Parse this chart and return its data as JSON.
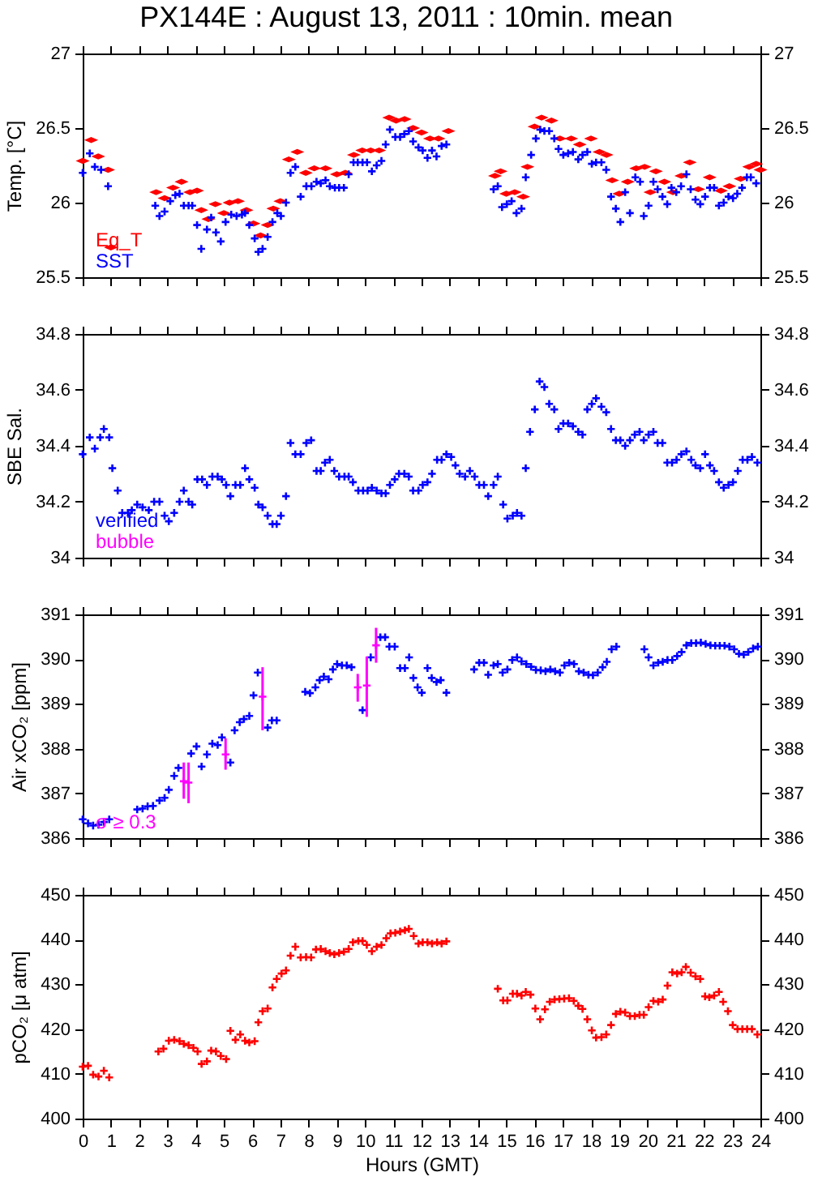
{
  "chart_data": [
    {
      "type": "scatter",
      "title": "PX144E : August 13, 2011 : 10min. mean",
      "ylabel": "Temp. [°C]",
      "xlim": [
        0,
        24
      ],
      "xticks": [
        0,
        1,
        2,
        3,
        4,
        5,
        6,
        7,
        8,
        9,
        10,
        11,
        12,
        13,
        14,
        15,
        16,
        17,
        18,
        19,
        20,
        21,
        22,
        23,
        24
      ],
      "ylim": [
        25.5,
        27
      ],
      "yticks": [
        25.5,
        26,
        26.5,
        27
      ],
      "y2lim": [
        25.5,
        27
      ],
      "y2ticks": [
        25.5,
        26,
        26.5,
        27
      ],
      "tick_labels": "y",
      "legend": "bottom left",
      "marker": "cross",
      "series": [
        {
          "name": "Eq_T",
          "color": "#ff0000",
          "marker": "diamond",
          "x": [
            0.0,
            0.3,
            0.55,
            0.9,
            1.0,
            2.6,
            2.9,
            3.2,
            3.5,
            3.8,
            4.05,
            4.2,
            4.45,
            4.7,
            5.0,
            5.2,
            5.5,
            5.8,
            6.05,
            6.3,
            6.55,
            6.75,
            7.0,
            7.3,
            7.6,
            7.9,
            8.2,
            8.6,
            9.0,
            9.3,
            9.6,
            9.9,
            10.2,
            10.5,
            10.85,
            11.1,
            11.4,
            11.7,
            12.0,
            12.3,
            12.6,
            12.95,
            14.6,
            14.8,
            15.0,
            15.3,
            15.6,
            15.75,
            16.0,
            16.25,
            16.6,
            16.9,
            17.3,
            17.6,
            18.0,
            18.3,
            18.55,
            18.75,
            19.0,
            19.3,
            19.6,
            19.9,
            20.1,
            20.3,
            20.6,
            20.9,
            21.2,
            21.5,
            21.8,
            22.2,
            22.6,
            22.9,
            23.3,
            23.6,
            23.85,
            24
          ],
          "values": [
            26.28,
            26.42,
            26.31,
            26.22,
            25.7,
            26.07,
            26.03,
            26.1,
            26.14,
            26.07,
            26.08,
            25.95,
            25.89,
            25.99,
            25.93,
            26.0,
            26.01,
            25.95,
            25.86,
            25.78,
            25.85,
            25.96,
            26.01,
            26.29,
            26.34,
            26.2,
            26.23,
            26.23,
            26.19,
            26.2,
            26.32,
            26.35,
            26.35,
            26.35,
            26.57,
            26.55,
            26.56,
            26.5,
            26.47,
            26.43,
            26.43,
            26.48,
            26.18,
            26.21,
            26.06,
            26.07,
            26.04,
            26.24,
            26.51,
            26.57,
            26.55,
            26.43,
            26.43,
            26.39,
            26.43,
            26.34,
            26.32,
            26.15,
            26.06,
            26.14,
            26.23,
            26.24,
            26.07,
            26.21,
            26.14,
            26.07,
            26.18,
            26.27,
            26.09,
            26.17,
            26.08,
            26.11,
            26.16,
            26.24,
            26.26,
            26.22
          ]
        },
        {
          "name": "SST",
          "color": "#0000ff",
          "x": [
            0.0,
            0.25,
            0.43,
            0.65,
            0.9,
            2.57,
            2.72,
            2.9,
            3.1,
            3.28,
            3.43,
            3.58,
            3.75,
            3.88,
            4.05,
            4.2,
            4.4,
            4.55,
            4.72,
            4.89,
            5.06,
            5.26,
            5.45,
            5.64,
            5.75,
            5.9,
            6.09,
            6.22,
            6.37,
            6.55,
            6.72,
            6.89,
            7.02,
            7.2,
            7.36,
            7.53,
            7.72,
            7.92,
            8.1,
            8.28,
            8.43,
            8.6,
            8.75,
            8.93,
            9.08,
            9.25,
            9.42,
            9.59,
            9.74,
            9.91,
            10.07,
            10.24,
            10.41,
            10.58,
            10.73,
            10.88,
            11.07,
            11.24,
            11.39,
            11.55,
            11.7,
            11.89,
            12.04,
            12.21,
            12.37,
            12.53,
            12.71,
            12.88,
            14.55,
            14.7,
            14.85,
            15.02,
            15.19,
            15.36,
            15.54,
            15.69,
            15.88,
            16.05,
            16.2,
            16.35,
            16.52,
            16.7,
            16.85,
            17.02,
            17.19,
            17.36,
            17.55,
            17.7,
            17.87,
            18.03,
            18.18,
            18.37,
            18.54,
            18.71,
            18.88,
            19.04,
            19.21,
            19.38,
            19.57,
            19.74,
            19.87,
            20.04,
            20.21,
            20.36,
            20.53,
            20.7,
            20.85,
            21.02,
            21.19,
            21.38,
            21.53,
            21.7,
            21.87,
            22.04,
            22.21,
            22.36,
            22.53,
            22.7,
            22.87,
            23.03,
            23.18,
            23.35,
            23.52,
            23.66,
            23.85
          ],
          "values": [
            26.2,
            26.33,
            26.24,
            26.22,
            26.11,
            25.98,
            25.91,
            25.94,
            26.01,
            26.05,
            26.06,
            25.98,
            25.98,
            25.98,
            25.85,
            25.69,
            25.82,
            25.9,
            25.8,
            25.74,
            25.87,
            25.92,
            25.91,
            25.92,
            25.93,
            25.85,
            25.76,
            25.67,
            25.69,
            25.77,
            25.87,
            25.93,
            25.91,
            26.0,
            26.2,
            26.24,
            26.04,
            26.11,
            26.11,
            26.14,
            26.13,
            26.15,
            26.11,
            26.1,
            26.1,
            26.1,
            26.19,
            26.27,
            26.27,
            26.27,
            26.27,
            26.21,
            26.25,
            26.28,
            26.39,
            26.49,
            26.44,
            26.44,
            26.46,
            26.48,
            26.41,
            26.37,
            26.35,
            26.3,
            26.35,
            26.31,
            26.38,
            26.39,
            26.09,
            26.11,
            25.97,
            25.99,
            26.01,
            25.93,
            25.96,
            26.17,
            26.32,
            26.43,
            26.49,
            26.48,
            26.48,
            26.43,
            26.36,
            26.32,
            26.33,
            26.34,
            26.29,
            26.32,
            26.34,
            26.26,
            26.27,
            26.27,
            26.22,
            26.04,
            25.96,
            25.87,
            26.07,
            25.93,
            26.17,
            26.14,
            25.91,
            25.98,
            26.14,
            26.09,
            26.04,
            25.99,
            26.1,
            26.07,
            26.11,
            26.19,
            26.09,
            26.02,
            25.99,
            26.04,
            26.1,
            26.1,
            25.98,
            26.0,
            26.04,
            26.03,
            26.06,
            26.1,
            26.17,
            26.17,
            26.13
          ]
        }
      ]
    },
    {
      "type": "scatter",
      "ylabel": "SBE Sal.",
      "xlim": [
        0,
        24
      ],
      "xticks": [
        0,
        1,
        2,
        3,
        4,
        5,
        6,
        7,
        8,
        9,
        10,
        11,
        12,
        13,
        14,
        15,
        16,
        17,
        18,
        19,
        20,
        21,
        22,
        23,
        24
      ],
      "ylim": [
        34,
        34.8
      ],
      "yticks": [
        34,
        34.2,
        34.4,
        34.6,
        34.8
      ],
      "y2lim": [
        34,
        34.8
      ],
      "y2ticks": [
        34,
        34.2,
        34.4,
        34.6,
        34.8
      ],
      "tick_labels": "y",
      "legend": "bottom left",
      "marker": "cross",
      "series": [
        {
          "name": "verified",
          "color": "#0000ff",
          "x": [
            0.0,
            0.25,
            0.43,
            0.62,
            0.75,
            0.94,
            1.05,
            1.24,
            1.4,
            1.6,
            1.74,
            1.93,
            2.12,
            2.34,
            2.53,
            2.72,
            2.9,
            3.05,
            3.24,
            3.43,
            3.58,
            3.75,
            3.88,
            4.06,
            4.23,
            4.4,
            4.59,
            4.78,
            4.93,
            5.08,
            5.23,
            5.41,
            5.58,
            5.75,
            5.9,
            6.09,
            6.22,
            6.37,
            6.55,
            6.72,
            6.87,
            7.02,
            7.2,
            7.36,
            7.53,
            7.72,
            7.92,
            8.09,
            8.28,
            8.43,
            8.58,
            8.75,
            8.91,
            9.08,
            9.27,
            9.42,
            9.57,
            9.76,
            9.93,
            10.09,
            10.24,
            10.41,
            10.58,
            10.73,
            10.88,
            11.05,
            11.2,
            11.39,
            11.55,
            11.7,
            11.89,
            12.04,
            12.21,
            12.37,
            12.55,
            12.71,
            12.88,
            13.05,
            13.2,
            13.35,
            13.54,
            13.71,
            13.88,
            14.04,
            14.21,
            14.36,
            14.55,
            14.7,
            14.89,
            15.04,
            15.23,
            15.38,
            15.54,
            15.69,
            15.84,
            16.01,
            16.18,
            16.35,
            16.52,
            16.7,
            16.85,
            17.02,
            17.19,
            17.36,
            17.55,
            17.7,
            17.87,
            18.03,
            18.18,
            18.37,
            18.54,
            18.71,
            18.88,
            19.04,
            19.21,
            19.38,
            19.55,
            19.72,
            19.87,
            20.04,
            20.21,
            20.36,
            20.53,
            20.7,
            20.87,
            21.03,
            21.2,
            21.38,
            21.55,
            21.7,
            21.87,
            22.04,
            22.21,
            22.36,
            22.53,
            22.7,
            22.87,
            23.03,
            23.2,
            23.37,
            23.54,
            23.7,
            23.89
          ],
          "values": [
            34.37,
            34.43,
            34.39,
            34.43,
            34.46,
            34.43,
            34.32,
            34.24,
            34.16,
            34.16,
            34.17,
            34.19,
            34.18,
            34.17,
            34.2,
            34.2,
            34.15,
            34.13,
            34.16,
            34.2,
            34.24,
            34.2,
            34.19,
            34.28,
            34.28,
            34.26,
            34.29,
            34.29,
            34.28,
            34.26,
            34.22,
            34.26,
            34.26,
            34.32,
            34.28,
            34.25,
            34.19,
            34.18,
            34.15,
            34.12,
            34.12,
            34.15,
            34.22,
            34.41,
            34.37,
            34.37,
            34.41,
            34.42,
            34.31,
            34.31,
            34.34,
            34.35,
            34.31,
            34.29,
            34.29,
            34.29,
            34.27,
            34.24,
            34.24,
            34.24,
            34.25,
            34.24,
            34.23,
            34.23,
            34.26,
            34.28,
            34.3,
            34.3,
            34.29,
            34.24,
            34.24,
            34.26,
            34.27,
            34.3,
            34.35,
            34.35,
            34.37,
            34.36,
            34.33,
            34.3,
            34.29,
            34.31,
            34.29,
            34.26,
            34.26,
            34.22,
            34.26,
            34.29,
            34.19,
            34.14,
            34.15,
            34.16,
            34.15,
            34.32,
            34.45,
            34.53,
            34.63,
            34.61,
            34.55,
            34.53,
            34.46,
            34.48,
            34.48,
            34.47,
            34.45,
            34.44,
            34.53,
            34.55,
            34.57,
            34.54,
            34.52,
            34.46,
            34.42,
            34.42,
            34.4,
            34.42,
            34.44,
            34.45,
            34.42,
            34.44,
            34.45,
            34.41,
            34.41,
            34.34,
            34.34,
            34.35,
            34.37,
            34.38,
            34.35,
            34.33,
            34.32,
            34.37,
            34.33,
            34.31,
            34.27,
            34.25,
            34.26,
            34.27,
            34.31,
            34.35,
            34.35,
            34.36,
            34.34
          ]
        },
        {
          "name": "bubble",
          "color": "#ff00ff"
        }
      ]
    },
    {
      "type": "scatter",
      "ylabel": "Air xCO₂ [ppm]",
      "xlim": [
        0,
        24
      ],
      "xticks": [
        0,
        1,
        2,
        3,
        4,
        5,
        6,
        7,
        8,
        9,
        10,
        11,
        12,
        13,
        14,
        15,
        16,
        17,
        18,
        19,
        20,
        21,
        22,
        23,
        24
      ],
      "ylim": [
        386,
        391
      ],
      "yticks": [
        386,
        387,
        388,
        389,
        390,
        391
      ],
      "y2lim": [
        386,
        391
      ],
      "y2ticks": [
        386,
        387,
        388,
        389,
        390,
        391
      ],
      "tick_labels": "y",
      "legend": "bottom left",
      "marker": "cross",
      "series": [
        {
          "color": "#0000ff",
          "x": [
            0.0,
            0.19,
            0.37,
            0.56,
            0.75,
            0.94,
            1.93,
            2.12,
            2.3,
            2.49,
            2.72,
            2.9,
            3.05,
            3.24,
            3.39,
            3.84,
            4.03,
            4.21,
            4.4,
            4.59,
            4.78,
            4.93,
            5.23,
            5.38,
            5.56,
            5.71,
            5.9,
            6.05,
            6.2,
            6.55,
            6.7,
            6.87,
            7.88,
            8.05,
            8.24,
            8.39,
            8.54,
            8.71,
            8.86,
            9.01,
            9.18,
            9.35,
            9.52,
            9.91,
            10.2,
            10.54,
            10.71,
            10.86,
            11.05,
            11.24,
            11.41,
            11.56,
            11.71,
            11.86,
            12.01,
            12.21,
            12.36,
            12.53,
            12.68,
            12.88,
            13.86,
            14.04,
            14.21,
            14.36,
            14.55,
            14.7,
            14.87,
            15.04,
            15.21,
            15.38,
            15.54,
            15.71,
            15.88,
            16.05,
            16.22,
            16.39,
            16.56,
            16.73,
            16.9,
            17.06,
            17.23,
            17.4,
            17.57,
            17.74,
            17.91,
            18.07,
            18.24,
            18.41,
            18.56,
            18.73,
            18.9,
            19.89,
            20.04,
            20.21,
            20.38,
            20.54,
            20.71,
            20.88,
            21.05,
            21.21,
            21.38,
            21.55,
            21.72,
            21.89,
            22.06,
            22.23,
            22.4,
            22.56,
            22.73,
            22.9,
            23.07,
            23.24,
            23.41,
            23.57,
            23.74,
            23.91
          ],
          "values": [
            386.42,
            386.33,
            386.28,
            386.3,
            386.36,
            386.42,
            386.64,
            386.66,
            386.71,
            386.72,
            386.84,
            386.9,
            387.08,
            387.39,
            387.57,
            387.89,
            388.05,
            387.6,
            387.87,
            388.11,
            388.08,
            388.25,
            387.69,
            388.41,
            388.59,
            388.66,
            388.73,
            389.19,
            389.7,
            388.47,
            388.63,
            388.63,
            389.27,
            389.24,
            389.37,
            389.53,
            389.61,
            389.55,
            389.77,
            389.89,
            389.86,
            389.86,
            389.82,
            388.86,
            390.04,
            390.49,
            390.49,
            390.28,
            390.28,
            389.8,
            389.8,
            390.04,
            389.58,
            389.37,
            389.25,
            389.8,
            389.58,
            389.49,
            389.53,
            389.25,
            389.77,
            389.92,
            389.92,
            389.65,
            389.86,
            389.89,
            389.7,
            389.77,
            389.98,
            390.04,
            389.95,
            389.89,
            389.83,
            389.76,
            389.75,
            389.73,
            389.77,
            389.73,
            389.7,
            389.86,
            389.92,
            389.89,
            389.73,
            389.7,
            389.65,
            389.64,
            389.7,
            389.82,
            389.94,
            390.22,
            390.28,
            390.22,
            390.04,
            389.86,
            389.92,
            389.94,
            389.98,
            389.98,
            390.07,
            390.16,
            390.31,
            390.36,
            390.36,
            390.37,
            390.34,
            390.31,
            390.3,
            390.3,
            390.3,
            390.28,
            390.22,
            390.12,
            390.1,
            390.16,
            390.24,
            390.28
          ]
        },
        {
          "name": "σ ≥ 0.3",
          "color": "#ff00ff",
          "x": [
            3.58,
            3.75,
            5.06,
            6.37,
            9.74,
            10.06,
            10.39
          ],
          "values": [
            387.27,
            387.24,
            387.87,
            389.16,
            389.37,
            389.41,
            390.31
          ],
          "errors": [
            [
              386.88,
              387.69
            ],
            [
              386.78,
              387.69
            ],
            [
              387.53,
              388.23
            ],
            [
              388.41,
              389.82
            ],
            [
              389.05,
              389.67
            ],
            [
              388.71,
              390.06
            ],
            [
              389.92,
              390.7
            ]
          ]
        }
      ]
    },
    {
      "type": "scatter",
      "ylabel": "pCO₂ [μ atm]",
      "xlabel": "Hours (GMT)",
      "xlim": [
        0,
        24
      ],
      "xticks": [
        0,
        1,
        2,
        3,
        4,
        5,
        6,
        7,
        8,
        9,
        10,
        11,
        12,
        13,
        14,
        15,
        16,
        17,
        18,
        19,
        20,
        21,
        22,
        23,
        24
      ],
      "ylim": [
        400,
        450
      ],
      "yticks": [
        400,
        410,
        420,
        430,
        440,
        450
      ],
      "y2lim": [
        400,
        450
      ],
      "y2ticks": [
        400,
        410,
        420,
        430,
        440,
        450
      ],
      "marker": "cross",
      "series": [
        {
          "color": "#ff0000",
          "x": [
            0.0,
            0.19,
            0.37,
            0.56,
            0.75,
            0.94,
            2.68,
            2.86,
            3.05,
            3.24,
            3.43,
            3.58,
            3.75,
            3.92,
            4.07,
            4.21,
            4.4,
            4.55,
            4.72,
            4.89,
            5.08,
            5.23,
            5.41,
            5.58,
            5.75,
            5.9,
            6.09,
            6.22,
            6.37,
            6.55,
            6.72,
            6.87,
            7.04,
            7.2,
            7.36,
            7.53,
            7.72,
            7.91,
            8.09,
            8.26,
            8.43,
            8.6,
            8.75,
            8.91,
            9.08,
            9.25,
            9.42,
            9.57,
            9.76,
            9.91,
            10.06,
            10.24,
            10.41,
            10.58,
            10.75,
            10.9,
            11.07,
            11.24,
            11.41,
            11.55,
            11.72,
            11.89,
            12.04,
            12.21,
            12.37,
            12.55,
            12.71,
            12.88,
            14.7,
            14.89,
            15.04,
            15.23,
            15.38,
            15.54,
            15.69,
            15.86,
            16.03,
            16.2,
            16.37,
            16.54,
            16.71,
            16.88,
            17.05,
            17.22,
            17.39,
            17.55,
            17.7,
            17.87,
            18.03,
            18.18,
            18.37,
            18.54,
            18.71,
            18.88,
            19.04,
            19.21,
            19.38,
            19.55,
            19.72,
            19.87,
            20.04,
            20.21,
            20.38,
            20.54,
            20.71,
            20.88,
            21.05,
            21.21,
            21.36,
            21.53,
            21.7,
            21.87,
            22.04,
            22.19,
            22.36,
            22.53,
            22.68,
            22.85,
            23.02,
            23.19,
            23.36,
            23.53,
            23.7,
            23.89
          ],
          "values": [
            411.6,
            411.8,
            409.8,
            409.4,
            410.7,
            409.2,
            415.0,
            415.6,
            417.4,
            417.6,
            417.3,
            416.7,
            416.4,
            415.8,
            415.0,
            412.2,
            412.8,
            415.2,
            415.0,
            414.0,
            413.3,
            419.6,
            417.6,
            418.8,
            417.4,
            417.0,
            417.3,
            421.5,
            424.0,
            424.6,
            429.3,
            431.2,
            432.4,
            433.1,
            436.4,
            438.4,
            436.0,
            436.1,
            436.0,
            437.8,
            437.9,
            437.4,
            437.0,
            436.7,
            437.0,
            437.3,
            437.9,
            439.4,
            439.7,
            439.7,
            438.8,
            437.4,
            438.4,
            438.8,
            440.3,
            441.4,
            441.5,
            441.8,
            442.1,
            442.4,
            440.8,
            439.1,
            439.4,
            439.4,
            439.1,
            439.4,
            439.1,
            439.6,
            429.0,
            426.4,
            426.4,
            427.9,
            427.9,
            427.5,
            428.3,
            427.7,
            424.6,
            422.2,
            424.4,
            426.1,
            426.6,
            426.7,
            426.8,
            426.9,
            426.3,
            425.2,
            424.5,
            422.2,
            419.7,
            418.1,
            418.2,
            418.8,
            420.9,
            423.4,
            423.9,
            423.7,
            422.9,
            422.9,
            423.2,
            423.2,
            424.9,
            426.3,
            426.1,
            426.6,
            429.7,
            432.7,
            432.4,
            432.7,
            433.9,
            432.6,
            431.8,
            431.2,
            427.3,
            427.1,
            427.5,
            428.3,
            426.1,
            424.0,
            420.9,
            420.0,
            420.0,
            420.0,
            420.0,
            418.8
          ]
        }
      ]
    }
  ]
}
